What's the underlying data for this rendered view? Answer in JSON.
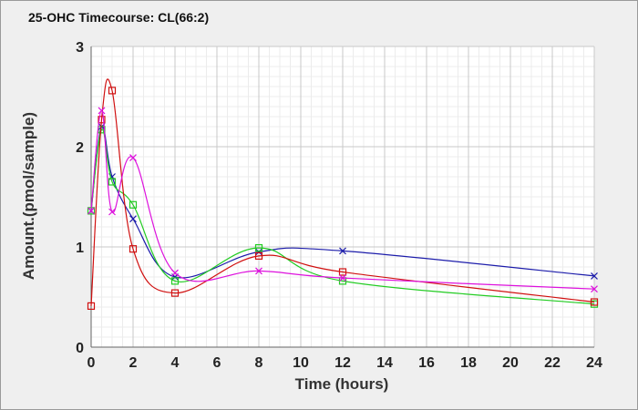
{
  "chart_data": {
    "type": "line",
    "title": "25-OHC Timecourse: CL(66:2)",
    "xlabel": "Time (hours)",
    "ylabel": "Amount.(pmol/sample)",
    "xlim": [
      0,
      24
    ],
    "ylim": [
      0,
      3
    ],
    "x_ticks": [
      "0",
      "2",
      "4",
      "6",
      "8",
      "10",
      "12",
      "14",
      "16",
      "18",
      "20",
      "22",
      "24"
    ],
    "y_ticks": [
      "0",
      "1",
      "2",
      "3"
    ],
    "grid": true,
    "legend": "none",
    "series": [
      {
        "color": "#1c1caa",
        "marker": "x",
        "x": [
          0,
          0.5,
          1,
          2,
          4,
          8,
          12,
          24
        ],
        "y": [
          1.36,
          2.2,
          1.7,
          1.28,
          0.7,
          0.95,
          0.96,
          0.71
        ]
      },
      {
        "color": "#22cc22",
        "marker": "square",
        "x": [
          0,
          0.5,
          1,
          2,
          4,
          8,
          12,
          24
        ],
        "y": [
          1.36,
          2.17,
          1.65,
          1.42,
          0.66,
          0.99,
          0.66,
          0.43
        ]
      },
      {
        "color": "#d01010",
        "marker": "square",
        "x": [
          0,
          0.5,
          1,
          2,
          4,
          8,
          12,
          24
        ],
        "y": [
          0.41,
          2.27,
          2.56,
          0.98,
          0.54,
          0.91,
          0.75,
          0.45
        ]
      },
      {
        "color": "#dd11dd",
        "marker": "x",
        "x": [
          0,
          0.5,
          1,
          2,
          4,
          8,
          12,
          24
        ],
        "y": [
          1.36,
          2.36,
          1.35,
          1.89,
          0.74,
          0.76,
          0.69,
          0.58
        ]
      }
    ]
  }
}
